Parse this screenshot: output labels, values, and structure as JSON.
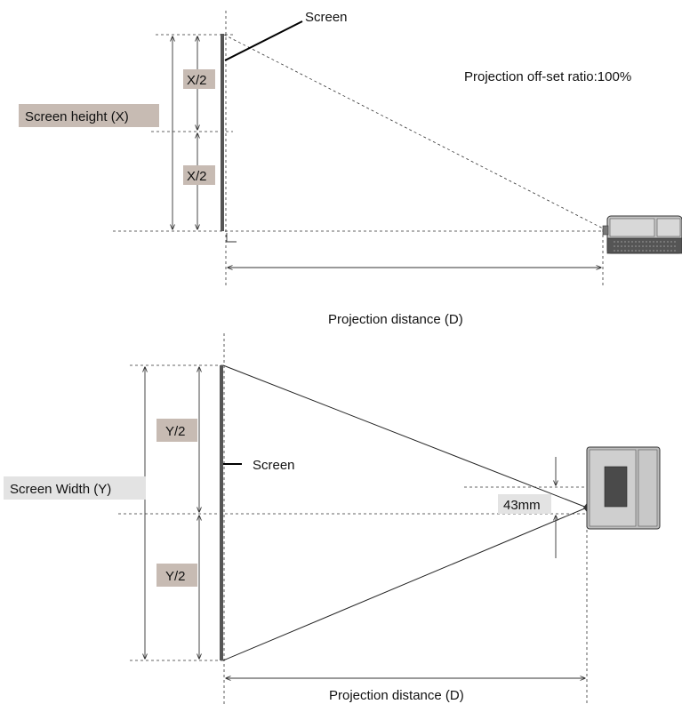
{
  "side_view": {
    "screen_label": "Screen",
    "screen_height_label": "Screen height (X)",
    "half_top": "X/2",
    "half_bottom": "X/2",
    "offset_ratio": "Projection off-set ratio:100%",
    "distance_label": "Projection distance (D)"
  },
  "top_view": {
    "screen_label": "Screen",
    "screen_width_label": "Screen Width (Y)",
    "half_top": "Y/2",
    "half_bottom": "Y/2",
    "offset_value": "43mm",
    "distance_label": "Projection distance (D)"
  },
  "colors": {
    "label_tag_dark": "#c7bbb3",
    "label_tag_light": "#e3e3e3",
    "projector_body": "#bdbdbd",
    "projector_dark": "#4a4a4a"
  },
  "icons": {
    "projector_side": "projector-side-icon",
    "projector_top": "projector-top-icon"
  }
}
